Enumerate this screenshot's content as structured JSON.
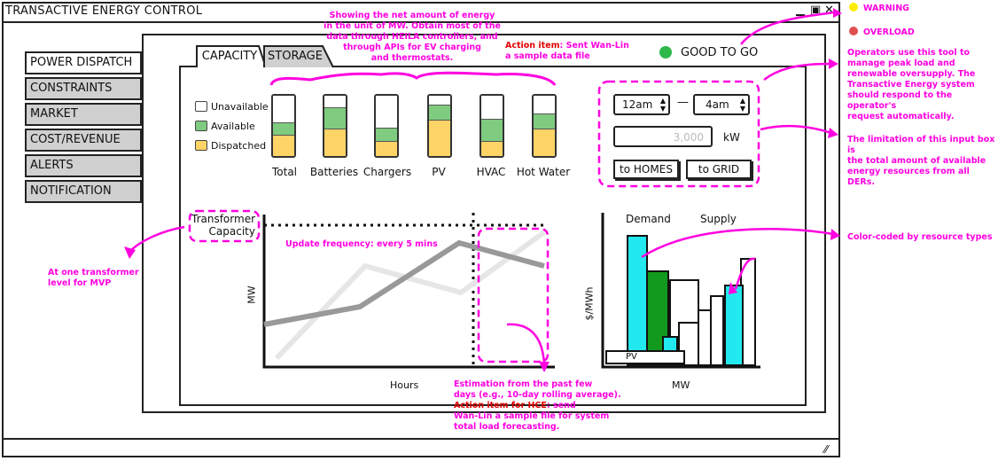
{
  "window": {
    "title": "TRANSACTIVE ENERGY CONTROL"
  },
  "sidebar": {
    "items": [
      {
        "label": "POWER DISPATCH",
        "active": true
      },
      {
        "label": "CONSTRAINTS"
      },
      {
        "label": "MARKET"
      },
      {
        "label": "COST/REVENUE"
      },
      {
        "label": "ALERTS"
      },
      {
        "label": "NOTIFICATION"
      }
    ]
  },
  "tabs": [
    {
      "label": "CAPACITY",
      "active": true
    },
    {
      "label": "STORAGE"
    }
  ],
  "status": {
    "label": "GOOD TO GO",
    "color": "#2fb84a"
  },
  "legend": {
    "items": [
      {
        "label": "Unavailable",
        "color": "#ffffff"
      },
      {
        "label": "Available",
        "color": "#7fcb7f"
      },
      {
        "label": "Dispatched",
        "color": "#ffd466"
      }
    ]
  },
  "capacity_bars": [
    {
      "label": "Total",
      "unavailable": 0.45,
      "available": 0.2,
      "dispatched": 0.35
    },
    {
      "label": "Batteries",
      "unavailable": 0.2,
      "available": 0.35,
      "dispatched": 0.45
    },
    {
      "label": "Chargers",
      "unavailable": 0.55,
      "available": 0.2,
      "dispatched": 0.25
    },
    {
      "label": "PV",
      "unavailable": 0.15,
      "available": 0.25,
      "dispatched": 0.6
    },
    {
      "label": "HVAC",
      "unavailable": 0.4,
      "available": 0.35,
      "dispatched": 0.25
    },
    {
      "label": "Hot Water",
      "unavailable": 0.3,
      "available": 0.25,
      "dispatched": 0.45
    }
  ],
  "dispatch": {
    "from": "12am",
    "to": "4am",
    "separator": "—",
    "amount_placeholder": "3,000",
    "unit": "kW",
    "to_homes": "to HOMES",
    "to_grid": "to GRID"
  },
  "transformer_chart": {
    "label_line1": "Transformer",
    "label_line2": "Capacity",
    "ylabel": "MW",
    "xlabel": "Hours"
  },
  "price_chart": {
    "demand_label": "Demand",
    "supply_label": "Supply",
    "ylabel": "$/MWh",
    "xlabel": "MW",
    "pv_label": "PV"
  },
  "legend_states": {
    "warning": "WARNING",
    "overload": "OVERLOAD",
    "warning_color": "#ffee00",
    "overload_color": "#e05050"
  },
  "notes": {
    "net_energy": [
      "Showing the net amount of energy",
      "in the unit of MW. Obtain most of the",
      "data through HEILA controllers, and",
      "through APIs for EV charging",
      "and thermostats."
    ],
    "action_item_label": "Action item",
    "action_item_text1": ": Sent Wan-Lin",
    "action_item_text2": "a sample data file",
    "operators": [
      "Operators use this tool to",
      "manage peak load and",
      "renewable oversupply. The",
      "Transactive Energy system",
      "should respond to the operator's",
      "request automatically."
    ],
    "limitation": [
      "The limitation of this input box is",
      "the total amount of available",
      "energy resources from all DERs."
    ],
    "color_coded": "Color-coded by resource types",
    "transformer_level": [
      "At one transformer",
      "level for MVP"
    ],
    "update_freq": "Update frequency: every 5 mins",
    "estimation": [
      "Estimation from the past few",
      "days (e.g., 10-day rolling average)."
    ],
    "hce_label": "Action item for HCE",
    "hce_text": [
      ": send",
      "Wan-Lin a sample file for system",
      "total load forecasting."
    ]
  }
}
